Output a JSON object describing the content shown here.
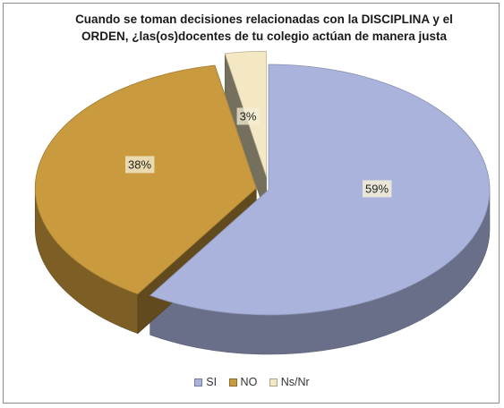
{
  "chart_data": {
    "type": "pie",
    "title_lines": [
      "Cuando se toman decisiones relacionadas con la DISCIPLINA y el",
      "ORDEN, ¿las(os)docentes de tu colegio actúan de manera justa"
    ],
    "categories": [
      "SI",
      "NO",
      "Ns/Nr"
    ],
    "values": [
      59,
      38,
      3
    ],
    "labels": [
      "59%",
      "38%",
      "3%"
    ],
    "colors": [
      "#aab3dc",
      "#c99a3e",
      "#f3e7c4"
    ],
    "legend_position": "bottom",
    "style": "3d-exploded"
  }
}
